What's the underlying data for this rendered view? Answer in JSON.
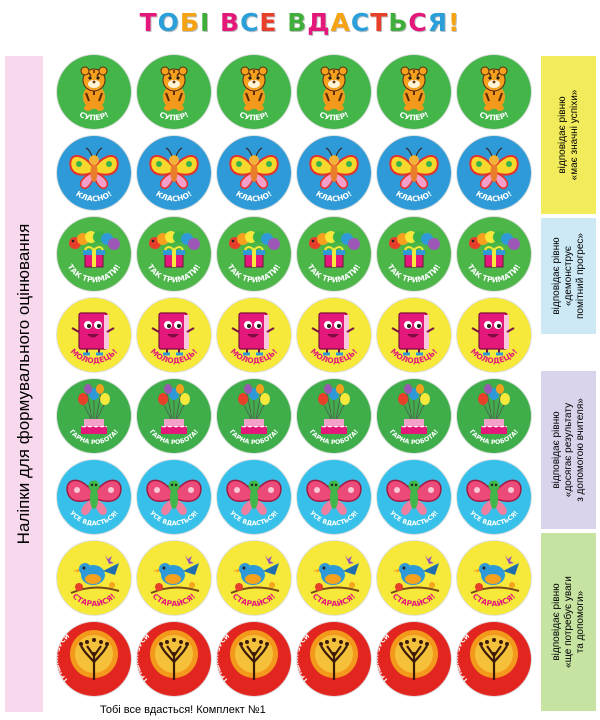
{
  "title": {
    "letters": [
      "Т",
      "О",
      "Б",
      "І",
      " ",
      "В",
      "С",
      "Е",
      " ",
      "В",
      "Д",
      "А",
      "С",
      "Т",
      "Ь",
      "С",
      "Я",
      "!"
    ],
    "letter_colors": [
      "#e4177a",
      "#2b9fd9",
      "#f5a313",
      "#3fae3a",
      "",
      "#e4177a",
      "#2b9fd9",
      "#e83f2a",
      "",
      "#3fae3a",
      "#e4177a",
      "#f5a313",
      "#2b9fd9",
      "#e83f2a",
      "#3fae3a",
      "#e4177a",
      "#2b9fd9",
      "#f5a313"
    ]
  },
  "left_caption": "Наліпки для формувального оцінювання",
  "rows": [
    {
      "label": "СУПЕР!",
      "icon": "tiger-icon",
      "bg": "#43b549"
    },
    {
      "label": "КЛАСНО!",
      "icon": "butterfly-icon",
      "bg": "#2e9ad8"
    },
    {
      "label": "ТАК ТРИМАТИ!",
      "icon": "caterpillar-gift-icon",
      "bg": "#4cb648"
    },
    {
      "label": "МОЛОДЕЦЬ!",
      "icon": "book-icon",
      "bg": "#f6e93a"
    },
    {
      "label": "ГАРНА РОБОТА!",
      "icon": "balloons-cake-icon",
      "bg": "#3fae4a"
    },
    {
      "label": "УСЕ ВДАСТЬСЯ!",
      "icon": "butterfly-pink-icon",
      "bg": "#37c1ea"
    },
    {
      "label": "СТАРАЙСЯ!",
      "icon": "bird-icon",
      "bg": "#f6e93a"
    },
    {
      "label": "ЩЕ ТРІШКИ ЗУСИЛЬ!",
      "icon": "tree-icon",
      "bg": "#e3251f"
    }
  ],
  "columns": 6,
  "side_notes": [
    {
      "lines": [
        "відповідає рівню",
        "«має значні успіхи»"
      ],
      "color": "#f2ec5c"
    },
    {
      "lines": [
        "відповідає рівню",
        "«демонструє",
        "помітний прогрес»"
      ],
      "color": "#cde9f6"
    },
    {
      "lines": [
        "відповідає рівню",
        "«досягає результату",
        "з допомогою вчителя»"
      ],
      "color": "#d9d3ec"
    },
    {
      "lines": [
        "відповідає рівню",
        "«ще потребує уваги",
        "та допомоги»"
      ],
      "color": "#c6e3a2"
    }
  ],
  "footer": "Тобі все вдасться! Комплект №1"
}
